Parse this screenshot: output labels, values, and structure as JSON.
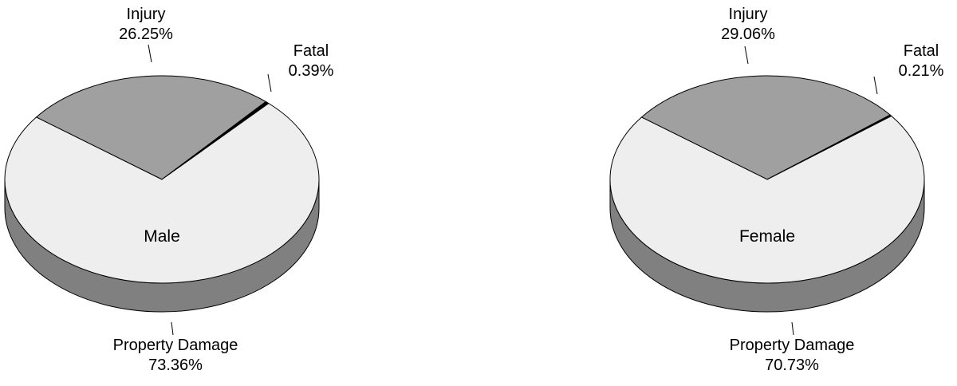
{
  "chart_data": [
    {
      "type": "pie",
      "title": "Male",
      "slices": [
        {
          "label": "Property Damage",
          "value": 73.36,
          "value_text": "73.36%",
          "color": "#eeeeee"
        },
        {
          "label": "Injury",
          "value": 26.25,
          "value_text": "26.25%",
          "color": "#a0a0a0"
        },
        {
          "label": "Fatal",
          "value": 0.39,
          "value_text": "0.39%",
          "color": "#000000"
        }
      ],
      "style": "3d",
      "side_color": "#808080"
    },
    {
      "type": "pie",
      "title": "Female",
      "slices": [
        {
          "label": "Property Damage",
          "value": 70.73,
          "value_text": "70.73%",
          "color": "#eeeeee"
        },
        {
          "label": "Injury",
          "value": 29.06,
          "value_text": "29.06%",
          "color": "#a0a0a0"
        },
        {
          "label": "Fatal",
          "value": 0.21,
          "value_text": "0.21%",
          "color": "#000000"
        }
      ],
      "style": "3d",
      "side_color": "#808080"
    }
  ]
}
